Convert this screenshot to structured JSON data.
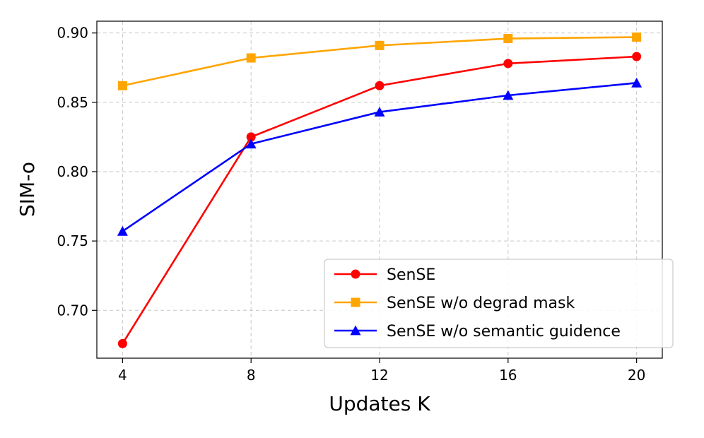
{
  "chart_data": {
    "type": "line",
    "title": "",
    "xlabel": "Updates K",
    "ylabel": "SIM-o",
    "x": [
      4,
      8,
      12,
      16,
      20
    ],
    "x_ticks": [
      "4",
      "8",
      "12",
      "16",
      "20"
    ],
    "y_ticks": [
      "0.70",
      "0.75",
      "0.80",
      "0.85",
      "0.90"
    ],
    "xlim": [
      3.2,
      20.8
    ],
    "ylim": [
      0.6655,
      0.9085
    ],
    "grid": true,
    "legend_position": "lower-right",
    "series": [
      {
        "name": "SenSE",
        "color": "#ff0000",
        "marker": "circle",
        "values": [
          0.676,
          0.825,
          0.862,
          0.878,
          0.883
        ]
      },
      {
        "name": "SenSE w/o degrad mask",
        "color": "#ffa500",
        "marker": "square",
        "values": [
          0.862,
          0.882,
          0.891,
          0.896,
          0.897
        ]
      },
      {
        "name": "SenSE w/o semantic guidence",
        "color": "#0000ff",
        "marker": "triangle",
        "values": [
          0.757,
          0.82,
          0.843,
          0.855,
          0.864
        ]
      }
    ]
  }
}
